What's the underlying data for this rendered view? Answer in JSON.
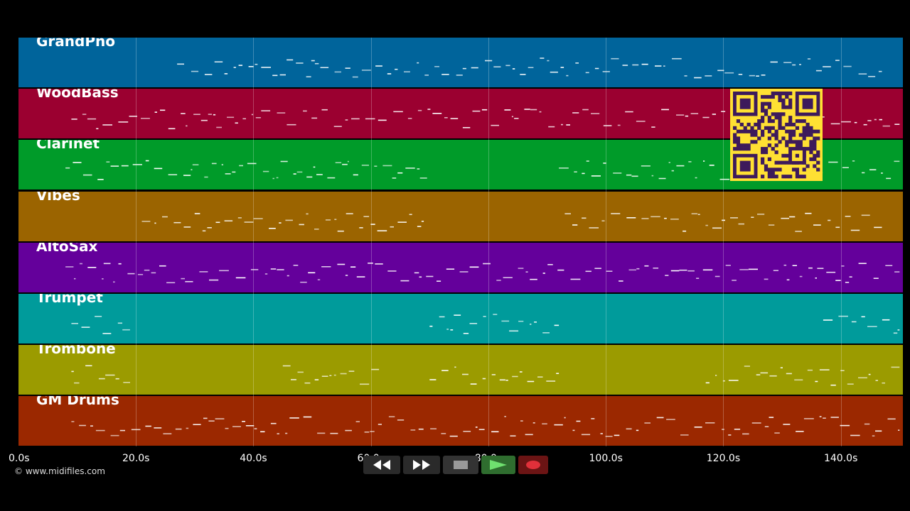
{
  "tracks": [
    {
      "name": "GrandPno",
      "color": "#00649b"
    },
    {
      "name": "WoodBass",
      "color": "#9b0030"
    },
    {
      "name": "Clarinet",
      "color": "#009b29"
    },
    {
      "name": "Vibes",
      "color": "#9b6400"
    },
    {
      "name": "AltoSax",
      "color": "#64009b"
    },
    {
      "name": "Trumpet",
      "color": "#009b9b"
    },
    {
      "name": "Trombone",
      "color": "#9b9b00"
    },
    {
      "name": "GM Drums",
      "color": "#9b2800"
    }
  ],
  "timeline": {
    "duration_s": 150,
    "ticks": [
      "0.0s",
      "20.0s",
      "40.0s",
      "60.0s",
      "80.0s",
      "100.0s",
      "120.0s",
      "140.0s"
    ],
    "tick_values": [
      0,
      20,
      40,
      60,
      80,
      100,
      120,
      140
    ]
  },
  "copyright": "© www.midifiles.com",
  "qr": {
    "fg": "#3d1a5b",
    "bg": "#ffe033"
  },
  "transport": {
    "rewind_icon": "rewind-icon",
    "fast_forward_icon": "fast-forward-icon",
    "stop_icon": "stop-icon",
    "play_icon": "play-icon",
    "record_icon": "record-icon"
  }
}
